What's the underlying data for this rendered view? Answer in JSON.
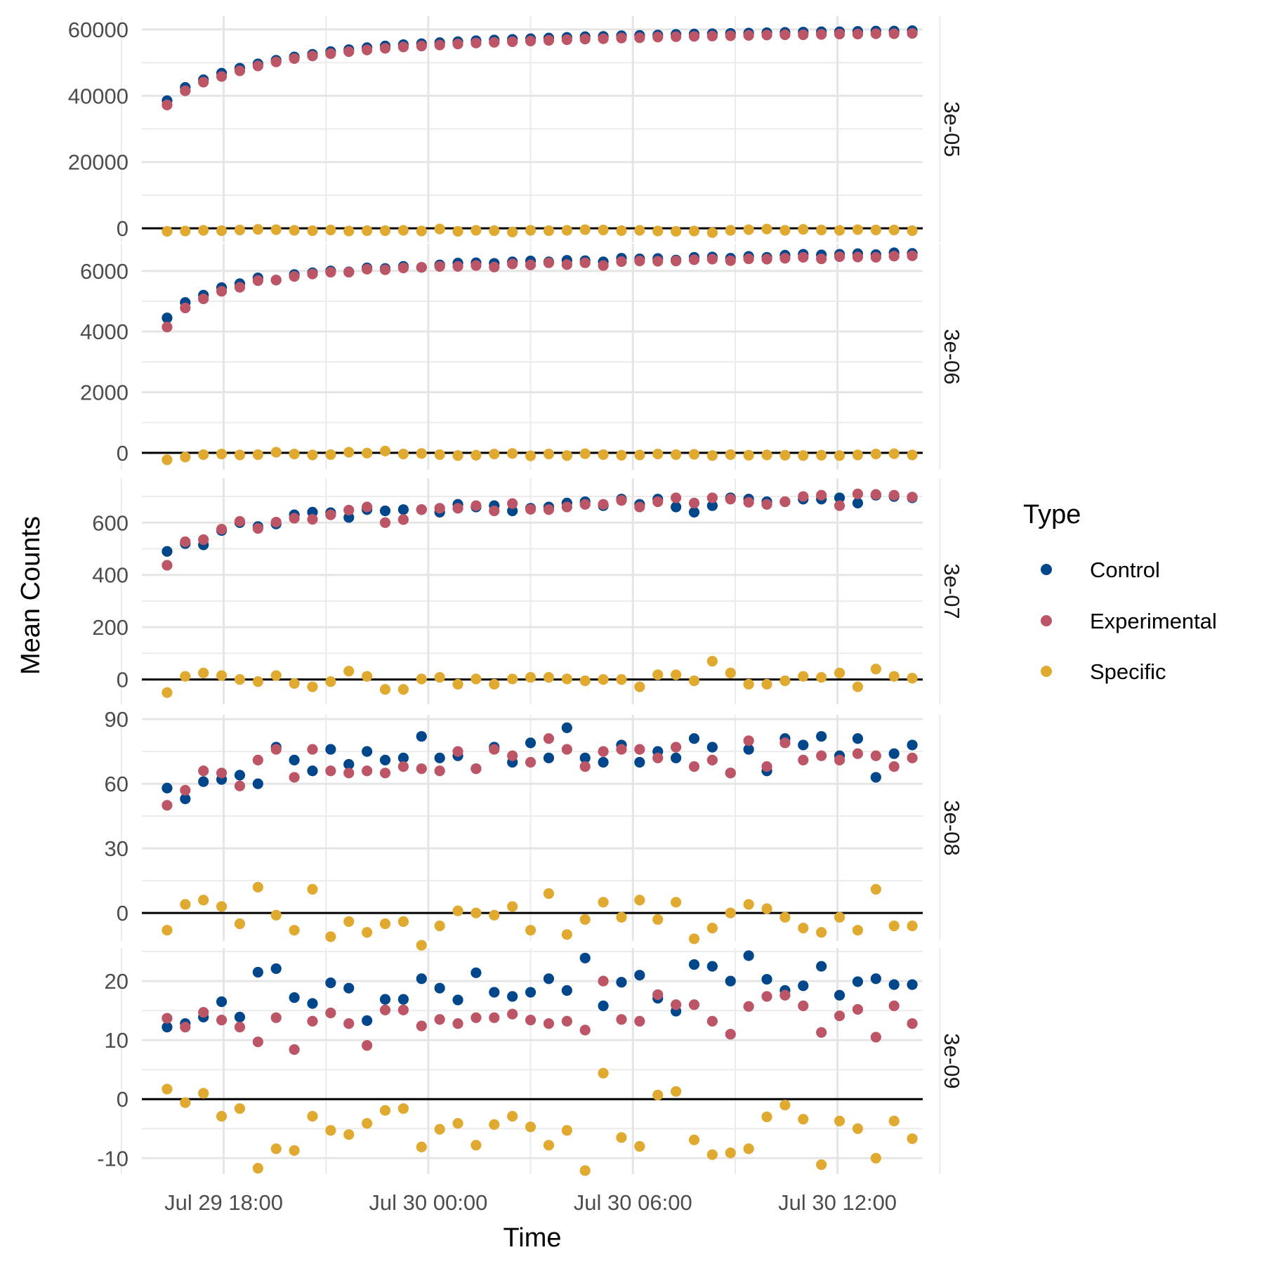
{
  "chart_data": {
    "type": "scatter",
    "xlabel": "Time",
    "ylabel": "Mean Counts",
    "x_ticks": [
      "Jul 29 18:00",
      "Jul 30 00:00",
      "Jul 30 06:00",
      "Jul 30 12:00"
    ],
    "x_tick_hours": [
      0,
      6,
      12,
      18
    ],
    "x_start_hours": -1.66,
    "x_step_hours": 0.533,
    "n_points": 42,
    "x_range_hours": [
      -2.4,
      20.5
    ],
    "grid": true,
    "legend": {
      "title": "Type",
      "position": "right",
      "entries": [
        {
          "name": "Control",
          "color": "#00468B"
        },
        {
          "name": "Experimental",
          "color": "#BC5566"
        },
        {
          "name": "Specific",
          "color": "#DFAA2F"
        }
      ]
    },
    "zero_line": true,
    "facets": [
      {
        "label": "3e-05",
        "ylim": [
          -4200,
          64000
        ],
        "y_ticks": [
          0,
          20000,
          40000,
          60000
        ],
        "series": [
          {
            "name": "Control",
            "values": [
              38500,
              42500,
              44800,
              46800,
              48300,
              49600,
              50700,
              51700,
              52500,
              53300,
              53900,
              54500,
              55000,
              55400,
              55700,
              56000,
              56300,
              56600,
              56800,
              57000,
              57200,
              57400,
              57600,
              57800,
              57900,
              58100,
              58200,
              58300,
              58500,
              58600,
              58700,
              58800,
              58900,
              59000,
              59100,
              59200,
              59300,
              59300,
              59400,
              59500,
              59500,
              59600
            ]
          },
          {
            "name": "Experimental",
            "values": [
              37200,
              41500,
              44100,
              45800,
              47500,
              49000,
              50200,
              51200,
              52000,
              52700,
              53300,
              53800,
              54300,
              54700,
              55000,
              55300,
              55600,
              55900,
              56100,
              56300,
              56500,
              56700,
              56900,
              57100,
              57200,
              57400,
              57500,
              57700,
              57800,
              57900,
              58000,
              58100,
              58200,
              58300,
              58400,
              58400,
              58500,
              58600,
              58600,
              58700,
              58700,
              58800
            ]
          },
          {
            "name": "Specific",
            "values": [
              -900,
              -800,
              -600,
              -700,
              -500,
              -300,
              -400,
              -600,
              -700,
              -500,
              -800,
              -700,
              -700,
              -600,
              -800,
              -200,
              -900,
              -600,
              -700,
              -1100,
              -600,
              -700,
              -600,
              -400,
              -500,
              -700,
              -600,
              -800,
              -900,
              -800,
              -1300,
              -600,
              -400,
              -200,
              -600,
              -300,
              -500,
              -600,
              -400,
              -500,
              -500,
              -700
            ]
          }
        ]
      },
      {
        "label": "3e-06",
        "ylim": [
          -560,
          6900
        ],
        "y_ticks": [
          0,
          2000,
          4000,
          6000
        ],
        "series": [
          {
            "name": "Control",
            "values": [
              4450,
              4960,
              5200,
              5450,
              5580,
              5770,
              5700,
              5880,
              5940,
              6000,
              5970,
              6100,
              6080,
              6150,
              6120,
              6200,
              6260,
              6270,
              6250,
              6300,
              6330,
              6300,
              6350,
              6340,
              6300,
              6420,
              6400,
              6410,
              6360,
              6450,
              6460,
              6420,
              6480,
              6450,
              6520,
              6550,
              6530,
              6550,
              6570,
              6540,
              6600,
              6580
            ]
          },
          {
            "name": "Experimental",
            "values": [
              4150,
              4780,
              5080,
              5330,
              5460,
              5680,
              5700,
              5820,
              5900,
              5960,
              5960,
              6060,
              6040,
              6100,
              6120,
              6150,
              6150,
              6180,
              6130,
              6230,
              6200,
              6270,
              6210,
              6270,
              6180,
              6310,
              6330,
              6320,
              6330,
              6370,
              6390,
              6340,
              6400,
              6390,
              6420,
              6450,
              6400,
              6470,
              6460,
              6450,
              6490,
              6500
            ]
          },
          {
            "name": "Specific",
            "values": [
              -230,
              -140,
              -60,
              -40,
              -70,
              -60,
              20,
              -40,
              -70,
              -60,
              20,
              -10,
              60,
              -40,
              -20,
              -60,
              -90,
              -80,
              -40,
              -20,
              -100,
              -40,
              -90,
              -30,
              -60,
              -80,
              -70,
              -40,
              -60,
              -50,
              -90,
              -60,
              -80,
              -70,
              -80,
              -90,
              -80,
              -90,
              -70,
              -40,
              -30,
              -70
            ]
          }
        ]
      },
      {
        "label": "3e-07",
        "ylim": [
          -95,
          770
        ],
        "y_ticks": [
          0,
          200,
          400,
          600
        ],
        "series": [
          {
            "name": "Control",
            "values": [
              490,
              520,
              515,
              570,
              600,
              585,
              595,
              630,
              640,
              638,
              620,
              650,
              645,
              650,
              650,
              640,
              670,
              660,
              665,
              645,
              655,
              660,
              675,
              680,
              665,
              690,
              670,
              690,
              660,
              640,
              665,
              695,
              690,
              680,
              680,
              690,
              690,
              695,
              675,
              705,
              700,
              695
            ]
          },
          {
            "name": "Experimental",
            "values": [
              437,
              527,
              535,
              575,
              605,
              578,
              602,
              617,
              613,
              630,
              648,
              660,
              600,
              612,
              650,
              655,
              655,
              665,
              645,
              673,
              651,
              650,
              660,
              670,
              670,
              685,
              660,
              680,
              695,
              675,
              695,
              690,
              678,
              670,
              680,
              700,
              705,
              665,
              710,
              708,
              705,
              698
            ]
          },
          {
            "name": "Specific",
            "values": [
              -50,
              12,
              25,
              15,
              0,
              -8,
              15,
              -15,
              -28,
              -8,
              32,
              12,
              -38,
              -38,
              2,
              8,
              -18,
              2,
              -18,
              2,
              8,
              8,
              2,
              -5,
              0,
              0,
              -28,
              18,
              18,
              -5,
              70,
              25,
              -18,
              -18,
              -5,
              12,
              8,
              25,
              -28,
              40,
              12,
              5
            ]
          }
        ]
      },
      {
        "label": "3e-08",
        "ylim": [
          -13,
          92
        ],
        "y_ticks": [
          0,
          30,
          60,
          90
        ],
        "series": [
          {
            "name": "Control",
            "values": [
              58,
              53,
              61,
              62,
              64,
              60,
              77,
              71,
              66,
              76,
              69,
              75,
              71,
              72,
              82,
              72,
              73,
              67,
              77,
              70,
              79,
              72,
              86,
              72,
              70,
              78,
              70,
              75,
              72,
              81,
              77,
              65,
              76,
              66,
              81,
              78,
              82,
              73,
              81,
              63,
              74,
              78
            ]
          },
          {
            "name": "Experimental",
            "values": [
              50,
              57,
              66,
              65,
              59,
              71,
              76,
              63,
              76,
              66,
              65,
              66,
              65,
              68,
              67,
              66,
              75,
              67,
              76,
              73,
              70,
              81,
              76,
              68,
              75,
              76,
              76,
              72,
              77,
              68,
              71,
              65,
              80,
              68,
              79,
              71,
              73,
              71,
              74,
              73,
              68,
              72
            ]
          },
          {
            "name": "Specific",
            "values": [
              -8,
              4,
              6,
              3,
              -5,
              12,
              -1,
              -8,
              11,
              -11,
              -4,
              -9,
              -5,
              -4,
              -15,
              -6,
              1,
              0,
              -1,
              3,
              -8,
              9,
              -10,
              -3,
              5,
              -2,
              6,
              -3,
              5,
              -12,
              -7,
              0,
              4,
              2,
              -2,
              -7,
              -9,
              -2,
              -8,
              11,
              -6,
              -6
            ]
          }
        ]
      },
      {
        "label": "3e-09",
        "ylim": [
          -12.7,
          25.6
        ],
        "y_ticks": [
          -10,
          0,
          10,
          20
        ],
        "series": [
          {
            "name": "Control",
            "values": [
              12.2,
              12.8,
              13.9,
              16.5,
              13.9,
              21.5,
              22.1,
              17.2,
              16.2,
              19.7,
              18.8,
              13.3,
              16.9,
              16.9,
              20.4,
              18.8,
              16.8,
              21.4,
              18.1,
              17.4,
              18.1,
              20.4,
              18.4,
              23.9,
              15.8,
              19.8,
              21.0,
              17.1,
              14.9,
              22.8,
              22.5,
              20.0,
              24.3,
              20.3,
              18.4,
              19.2,
              22.5,
              17.6,
              19.9,
              20.4,
              19.4,
              19.4
            ]
          },
          {
            "name": "Experimental",
            "values": [
              13.7,
              12.2,
              14.7,
              13.4,
              12.2,
              9.7,
              13.8,
              8.4,
              13.2,
              14.6,
              12.8,
              9.1,
              15.1,
              15.1,
              12.4,
              13.5,
              12.8,
              13.8,
              13.8,
              14.4,
              13.4,
              12.8,
              13.2,
              11.7,
              20.0,
              13.5,
              13.2,
              17.7,
              16.0,
              16.0,
              13.2,
              11.0,
              15.7,
              17.4,
              17.6,
              15.8,
              11.3,
              14.1,
              15.2,
              10.5,
              15.8,
              12.8
            ]
          },
          {
            "name": "Specific",
            "values": [
              1.7,
              -0.6,
              1.0,
              -2.9,
              -1.6,
              -11.7,
              -8.4,
              -8.7,
              -2.9,
              -5.3,
              -6.0,
              -4.1,
              -1.9,
              -1.6,
              -8.1,
              -5.1,
              -4.1,
              -7.8,
              -4.3,
              -2.9,
              -4.7,
              -7.8,
              -5.3,
              -12.1,
              4.4,
              -6.5,
              -8.0,
              0.7,
              1.3,
              -6.9,
              -9.4,
              -9.1,
              -8.4,
              -3.0,
              -1.0,
              -3.4,
              -11.1,
              -3.7,
              -5.0,
              -10.0,
              -3.7,
              -6.7
            ]
          }
        ]
      }
    ]
  }
}
